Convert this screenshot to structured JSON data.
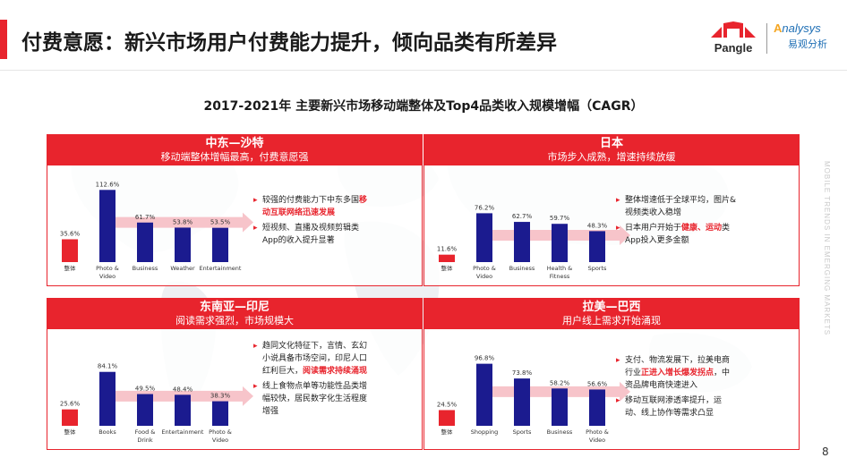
{
  "header": {
    "title": "付费意愿：新兴市场用户付费能力提升，倾向品类有所差异",
    "brand_left": "Pangle",
    "brand_right_en_head": "A",
    "brand_right_en_tail": "nalysys",
    "brand_right_cn": "易观分析"
  },
  "subtitle": "2017-2021年 主要新兴市场移动端整体及Top4品类收入规模增幅（CAGR）",
  "side_text": "MOBILE TRENDS IN EMERGING MARKETS",
  "page_number": "8",
  "colors": {
    "accent": "#e8242d",
    "bar": "#1b1b8f",
    "total_bar": "#e8242d",
    "arrow": "#f5b5bd"
  },
  "chart_data": [
    {
      "type": "bar",
      "title": "中东—沙特",
      "subtitle": "移动端整体增幅最高，付费意愿强",
      "categories": [
        "整体",
        "Photo & Video",
        "Business",
        "Weather",
        "Entertainment"
      ],
      "values": [
        35.6,
        112.6,
        61.7,
        53.8,
        53.5
      ],
      "labels": [
        "35.6%",
        "112.6%",
        "61.7%",
        "53.8%",
        "53.5%"
      ],
      "notes": [
        [
          {
            "t": "较强的付费能力下中东多国"
          },
          {
            "t": "移动互联网络迅速发展",
            "hl": true
          }
        ],
        [
          {
            "t": "短视频、直播及视频剪辑类App的收入提升显著"
          }
        ]
      ]
    },
    {
      "type": "bar",
      "title": "日本",
      "subtitle": "市场步入成熟，增速持续放缓",
      "categories": [
        "整体",
        "Photo & Video",
        "Business",
        "Health & Fitness",
        "Sports"
      ],
      "values": [
        11.6,
        76.2,
        62.7,
        59.7,
        48.3
      ],
      "labels": [
        "11.6%",
        "76.2%",
        "62.7%",
        "59.7%",
        "48.3%"
      ],
      "notes": [
        [
          {
            "t": "整体增速低于全球平均，图片&视频类收入稳增"
          }
        ],
        [
          {
            "t": "日本用户开始于"
          },
          {
            "t": "健康、运动",
            "hl": true
          },
          {
            "t": "类App投入更多金额"
          }
        ]
      ]
    },
    {
      "type": "bar",
      "title": "东南亚—印尼",
      "subtitle": "阅读需求强烈，市场规模大",
      "categories": [
        "整体",
        "Books",
        "Food & Drink",
        "Entertainment",
        "Photo & Video"
      ],
      "values": [
        25.6,
        84.1,
        49.5,
        48.4,
        38.3
      ],
      "labels": [
        "25.6%",
        "84.1%",
        "49.5%",
        "48.4%",
        "38.3%"
      ],
      "notes": [
        [
          {
            "t": "趋同文化特征下，言情、玄幻小说具备市场空间，印尼人口红利巨大，"
          },
          {
            "t": "阅读需求持续涌现",
            "hl": true
          }
        ],
        [
          {
            "t": "线上食物点单等功能性品类增幅较快，居民数字化生活程度增强"
          }
        ]
      ]
    },
    {
      "type": "bar",
      "title": "拉美—巴西",
      "subtitle": "用户线上需求开始涌现",
      "categories": [
        "整体",
        "Shopping",
        "Sports",
        "Business",
        "Photo & Video"
      ],
      "values": [
        24.5,
        96.8,
        73.8,
        58.2,
        56.6
      ],
      "labels": [
        "24.5%",
        "96.8%",
        "73.8%",
        "58.2%",
        "56.6%"
      ],
      "notes": [
        [
          {
            "t": "支付、物流发展下，拉美电商行业"
          },
          {
            "t": "正进入增长爆发拐点",
            "hl": true
          },
          {
            "t": "，中资品牌电商快速进入"
          }
        ],
        [
          {
            "t": "移动互联网渗透率提升，运动、线上协作等需求凸显"
          }
        ]
      ]
    }
  ]
}
